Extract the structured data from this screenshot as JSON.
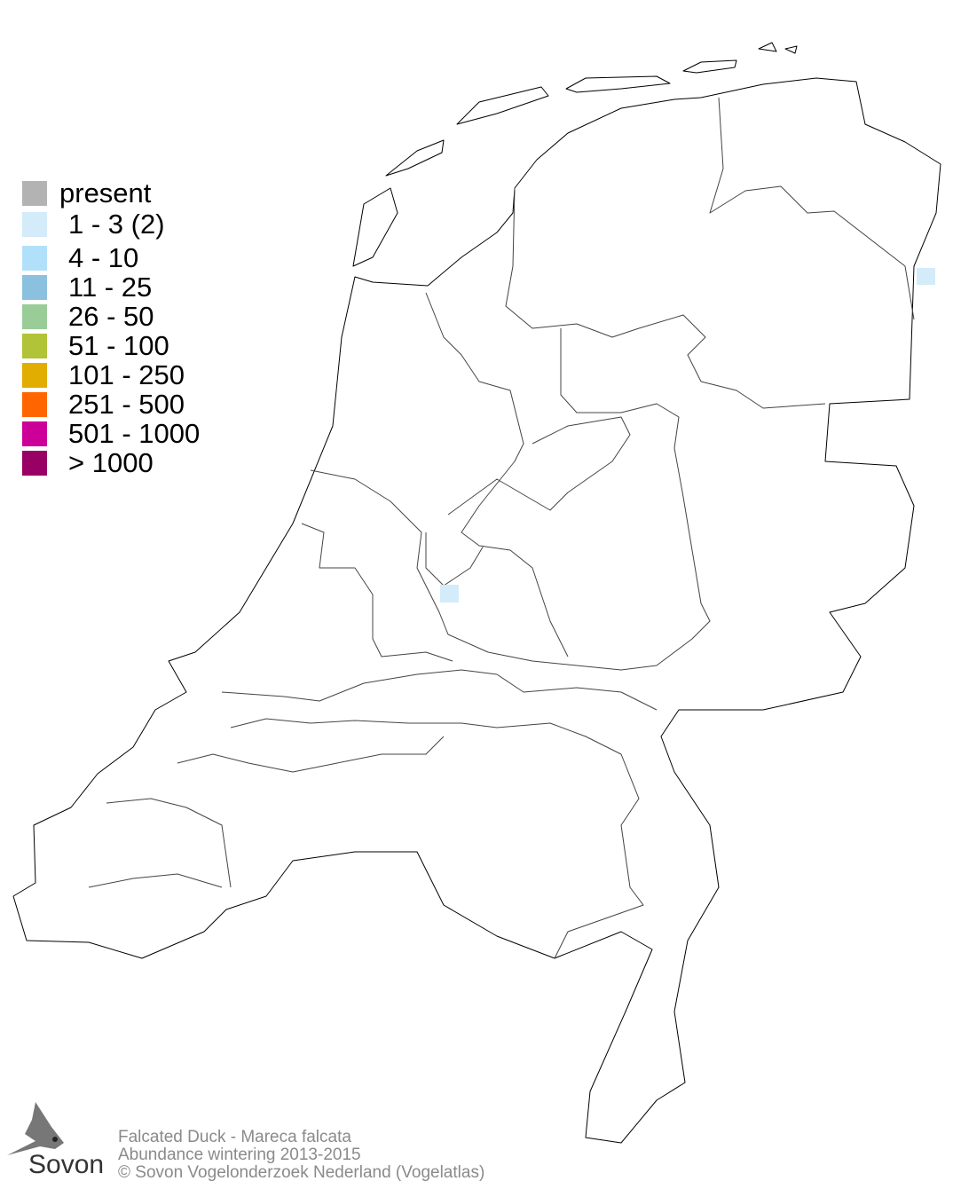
{
  "legend": {
    "items": [
      {
        "label": "present",
        "color": "#b3b3b3"
      },
      {
        "label": "1 - 3 (2)",
        "color": "#d4ebfa"
      },
      {
        "label": "4 - 10",
        "color": "#b1e1fa"
      },
      {
        "label": "11 - 25",
        "color": "#8bc1df"
      },
      {
        "label": "26 - 50",
        "color": "#9acc98"
      },
      {
        "label": "51 - 100",
        "color": "#b1c336"
      },
      {
        "label": "101 - 250",
        "color": "#e0ad00"
      },
      {
        "label": "251 - 500",
        "color": "#ff6600"
      },
      {
        "label": "501 - 1000",
        "color": "#cc0099"
      },
      {
        "label": "> 1000",
        "color": "#990066"
      }
    ]
  },
  "map": {
    "occupied_cells": [
      {
        "region": "Groningen/Drenthe east border",
        "class": "1 - 3 (2)"
      },
      {
        "region": "Utrecht",
        "class": "1 - 3 (2)"
      }
    ]
  },
  "footer": {
    "species": "Falcated Duck - Mareca falcata",
    "subtitle": "Abundance wintering 2013-2015",
    "copyright": "© Sovon Vogelonderzoek Nederland (Vogelatlas)"
  },
  "logo": {
    "text": "Sovon"
  }
}
